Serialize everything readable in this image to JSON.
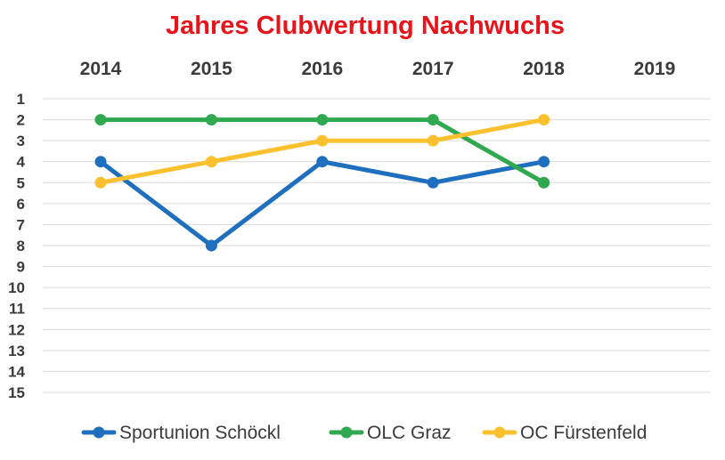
{
  "chart_data": {
    "type": "line",
    "title": "Jahres Clubwertung Nachwuchs",
    "xlabel": "",
    "ylabel": "",
    "categories": [
      "2014",
      "2015",
      "2016",
      "2017",
      "2018",
      "2019"
    ],
    "y_ticks": [
      "1",
      "2",
      "3",
      "4",
      "5",
      "6",
      "7",
      "8",
      "9",
      "10",
      "11",
      "12",
      "13",
      "14",
      "15"
    ],
    "ylim": [
      1,
      15
    ],
    "y_inverted": true,
    "x_axis_position": "top",
    "grid": true,
    "legend_position": "bottom",
    "series": [
      {
        "name": "Sportunion Schöckl",
        "color": "#1f6fbf",
        "values": [
          4,
          8,
          4,
          5,
          4,
          null
        ]
      },
      {
        "name": "OLC Graz",
        "color": "#2fa84f",
        "values": [
          2,
          2,
          2,
          2,
          5,
          null
        ]
      },
      {
        "name": "OC Fürstenfeld",
        "color": "#fbc02d",
        "values": [
          5,
          4,
          3,
          3,
          2,
          null
        ]
      }
    ]
  }
}
